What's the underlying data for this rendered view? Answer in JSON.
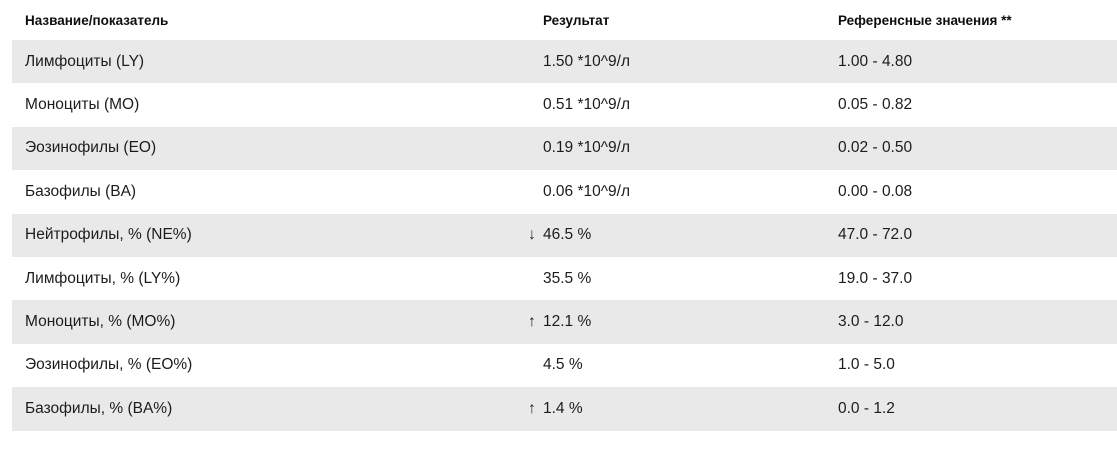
{
  "table": {
    "columns": [
      {
        "label": "Название/показатель"
      },
      {
        "label": "Результат"
      },
      {
        "label": "Референсные значения **"
      }
    ],
    "rows": [
      {
        "name": "Лимфоциты (LY)",
        "flag": "",
        "result": "1.50 *10^9/л",
        "reference": "1.00 - 4.80"
      },
      {
        "name": "Моноциты (MO)",
        "flag": "",
        "result": "0.51 *10^9/л",
        "reference": "0.05 - 0.82"
      },
      {
        "name": "Эозинофилы (EO)",
        "flag": "",
        "result": "0.19 *10^9/л",
        "reference": "0.02 - 0.50"
      },
      {
        "name": "Базофилы (BA)",
        "flag": "",
        "result": "0.06 *10^9/л",
        "reference": "0.00 - 0.08"
      },
      {
        "name": "Нейтрофилы, % (NE%)",
        "flag": "↓",
        "result": "46.5 %",
        "reference": "47.0 - 72.0"
      },
      {
        "name": "Лимфоциты, % (LY%)",
        "flag": "",
        "result": "35.5 %",
        "reference": "19.0 - 37.0"
      },
      {
        "name": "Моноциты, % (MO%)",
        "flag": "↑",
        "result": "12.1 %",
        "reference": "3.0 - 12.0"
      },
      {
        "name": "Эозинофилы, % (EO%)",
        "flag": "",
        "result": "4.5 %",
        "reference": "1.0 - 5.0"
      },
      {
        "name": "Базофилы, % (BA%)",
        "flag": "↑",
        "result": "1.4 %",
        "reference": "0.0 - 1.2"
      }
    ],
    "colors": {
      "stripe": "#e9e9e9",
      "background": "#ffffff",
      "text": "#1c1c1c",
      "header_text": "#0d0d0d"
    }
  }
}
